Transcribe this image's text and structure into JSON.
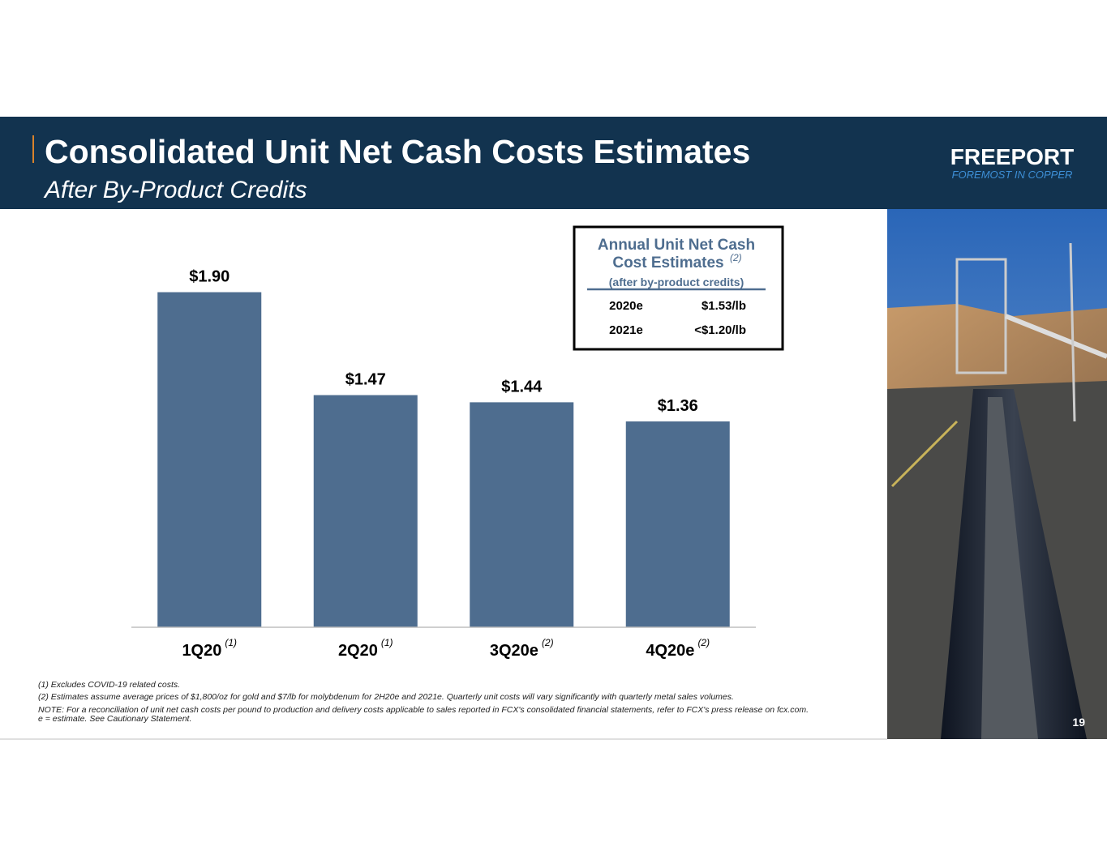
{
  "chart_data": {
    "type": "bar",
    "title": "Consolidated Unit Net Cash Costs Estimates",
    "subtitle": "After By-Product Credits",
    "categories": [
      "1Q20",
      "2Q20",
      "3Q20e",
      "4Q20e"
    ],
    "category_notes": [
      "(1)",
      "(1)",
      "(2)",
      "(2)"
    ],
    "values": [
      1.9,
      1.47,
      1.44,
      1.36
    ],
    "value_labels": [
      "$1.90",
      "$1.47",
      "$1.44",
      "$1.36"
    ],
    "color": "#4e6d8f",
    "ylim": [
      0.5,
      2.0
    ]
  },
  "logo": {
    "name": "FREEPORT",
    "tagline": "FOREMOST IN COPPER"
  },
  "annual_table": {
    "title_lines": [
      "Annual Unit Net Cash",
      "Cost Estimates"
    ],
    "title_note": "(2)",
    "subtitle": "(after by-product credits)",
    "rows": [
      [
        "2020e",
        "$1.53/lb"
      ],
      [
        "2021e",
        "<$1.20/lb"
      ]
    ]
  },
  "footnotes": [
    "(1)  Excludes COVID-19 related costs.",
    "(2)  Estimates assume average prices of $1,800/oz for gold and $7/lb for molybdenum for 2H20e and 2021e.  Quarterly unit costs will vary significantly with quarterly metal sales volumes.",
    "NOTE: For a reconciliation of unit net cash costs per pound to production and delivery costs applicable to sales reported in FCX's consolidated financial statements, refer to FCX's press release on fcx.com.",
    "e = estimate. See Cautionary Statement."
  ],
  "page_number": "19"
}
